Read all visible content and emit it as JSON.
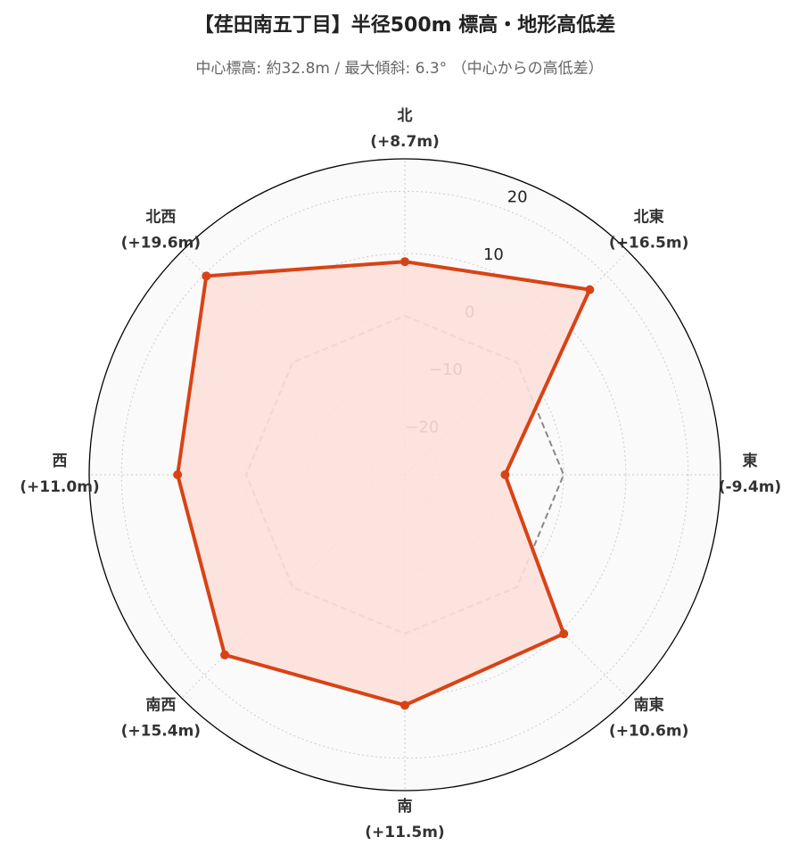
{
  "chart_data": {
    "type": "radar",
    "title": "【荏田南五丁目】半径500m 標高・地形高低差",
    "subtitle": "中心標高: 約32.8m / 最大傾斜: 6.3° （中心からの高低差）",
    "categories": [
      "北",
      "北東",
      "東",
      "南東",
      "南",
      "南西",
      "西",
      "北西"
    ],
    "series": [
      {
        "values": [
          8.7,
          16.5,
          -9.4,
          10.6,
          11.5,
          15.4,
          11.0,
          19.6
        ],
        "value_labels": [
          "(+8.7m)",
          "(+16.5m)",
          "(-9.4m)",
          "(+10.6m)",
          "(+11.5m)",
          "(+15.4m)",
          "(+11.0m)",
          "(+19.6m)"
        ],
        "color": "#d84315",
        "fill": "#fde0da"
      }
    ],
    "reference_value": 0,
    "ylim": [
      -25.5,
      25.2
    ],
    "yticks": [
      {
        "value": -20,
        "label": "−20"
      },
      {
        "value": -10,
        "label": "−10"
      },
      0,
      10,
      20
    ],
    "grid": true
  }
}
